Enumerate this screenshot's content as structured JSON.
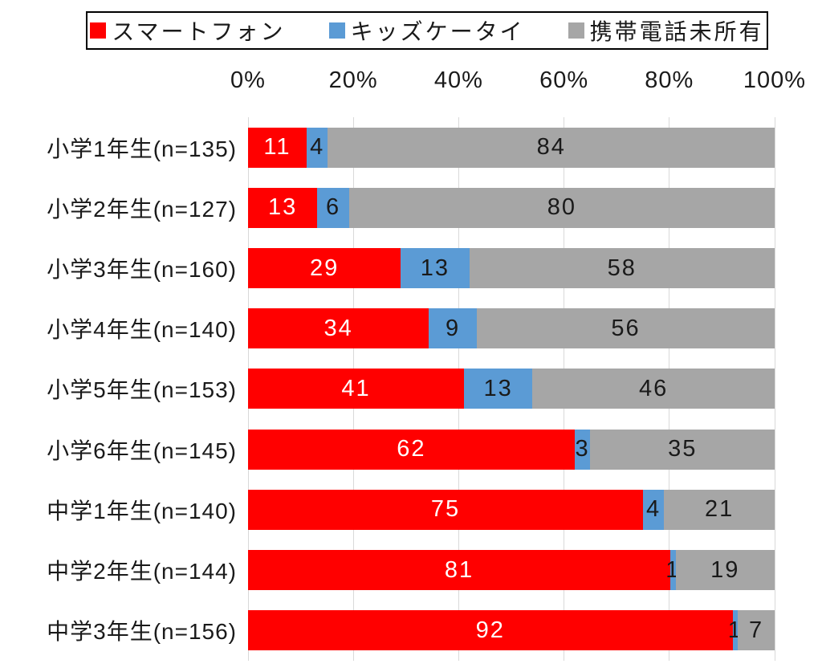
{
  "chart_data": {
    "type": "bar",
    "stacked": true,
    "orientation": "horizontal",
    "title": "",
    "xlabel": "",
    "ylabel": "",
    "xlim": [
      0,
      100
    ],
    "grid": true,
    "axis_position": "top",
    "x_ticks": [
      "0%",
      "20%",
      "40%",
      "60%",
      "80%",
      "100%"
    ],
    "x_tick_values": [
      0,
      20,
      40,
      60,
      80,
      100
    ],
    "legend": {
      "position": "top",
      "items": [
        {
          "label": "スマートフォン",
          "color": "#ff0000"
        },
        {
          "label": "キッズケータイ",
          "color": "#5b9bd5"
        },
        {
          "label": "携帯電話未所有",
          "color": "#a6a6a6"
        }
      ]
    },
    "series": [
      {
        "name": "スマートフォン",
        "color": "#ff0000",
        "values": [
          11,
          13,
          29,
          34,
          41,
          62,
          75,
          81,
          92
        ]
      },
      {
        "name": "キッズケータイ",
        "color": "#5b9bd5",
        "values": [
          4,
          6,
          13,
          9,
          13,
          3,
          4,
          1,
          1
        ]
      },
      {
        "name": "携帯電話未所有",
        "color": "#a6a6a6",
        "values": [
          84,
          80,
          58,
          56,
          46,
          35,
          21,
          19,
          7
        ]
      }
    ],
    "categories": [
      "小学1年生(n=135)",
      "小学2年生(n=127)",
      "小学3年生(n=160)",
      "小学4年生(n=140)",
      "小学5年生(n=153)",
      "小学6年生(n=145)",
      "中学1年生(n=140)",
      "中学2年生(n=144)",
      "中学3年生(n=156)"
    ]
  },
  "colors": {
    "smartphone": "#ff0000",
    "kids_phone": "#5b9bd5",
    "no_phone": "#a6a6a6",
    "gridline": "#d9d9d9",
    "text": "#1a1a1a",
    "value_on_red": "#ffffff",
    "legend_border": "#000000",
    "background": "#ffffff"
  }
}
